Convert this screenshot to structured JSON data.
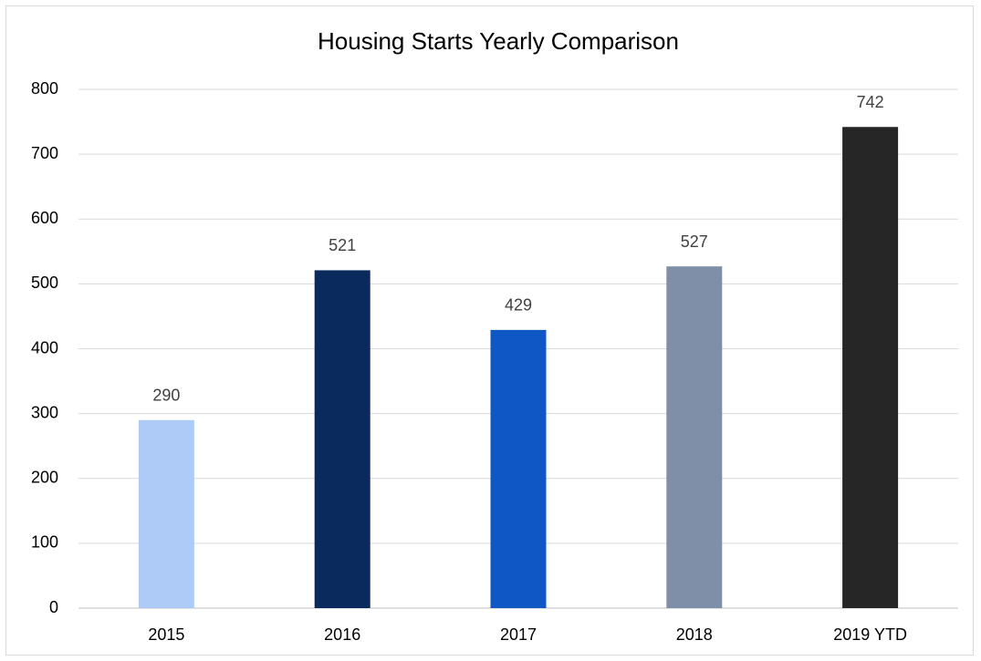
{
  "chart_data": {
    "type": "bar",
    "title": "Housing Starts Yearly Comparison",
    "categories": [
      "2015",
      "2016",
      "2017",
      "2018",
      "2019 YTD"
    ],
    "values": [
      290,
      521,
      429,
      527,
      742
    ],
    "colors": [
      "#aecbf7",
      "#0a2a5e",
      "#0f57c4",
      "#7f8fa8",
      "#262626"
    ],
    "ylim": [
      0,
      800
    ],
    "yticks": [
      0,
      100,
      200,
      300,
      400,
      500,
      600,
      700,
      800
    ],
    "grid": true
  }
}
